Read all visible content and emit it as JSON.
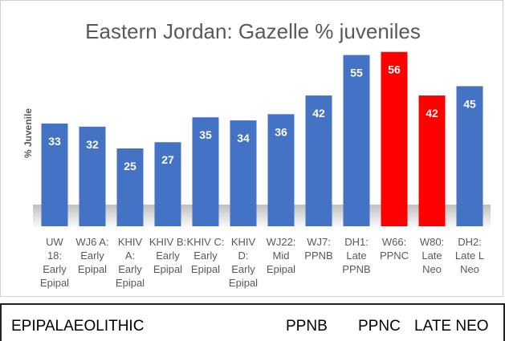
{
  "chart_data": {
    "type": "bar",
    "title": "Eastern Jordan: Gazelle % juveniles",
    "ylabel": "% Juvenile",
    "xlabel": "",
    "ylim": [
      0,
      60
    ],
    "grid": false,
    "categories": [
      [
        "UW",
        "18:",
        "Early",
        "Epipal"
      ],
      [
        "WJ6 A:",
        "Early",
        "Epipal"
      ],
      [
        "KHIV",
        "A:",
        "Early",
        "Epipal"
      ],
      [
        "KHIV B:",
        "Early",
        "Epipal"
      ],
      [
        "KHIV C:",
        "Early",
        "Epipal"
      ],
      [
        "KHIV",
        "D:",
        "Early",
        "Epipal"
      ],
      [
        "WJ22:",
        "Mid",
        "Epipal"
      ],
      [
        "WJ7:",
        "PPNB"
      ],
      [
        "DH1:",
        "Late",
        "PPNB"
      ],
      [
        "W66:",
        "PPNC"
      ],
      [
        "W80:",
        "Late",
        "Neo"
      ],
      [
        "DH2:",
        "Late L",
        "Neo"
      ]
    ],
    "values": [
      33,
      32,
      25,
      27,
      35,
      34,
      36,
      42,
      55,
      56,
      42,
      45
    ],
    "bar_colors": [
      "#4472c4",
      "#4472c4",
      "#4472c4",
      "#4472c4",
      "#4472c4",
      "#4472c4",
      "#4472c4",
      "#4472c4",
      "#4472c4",
      "#ff0000",
      "#ff0000",
      "#4472c4"
    ],
    "data_labels": [
      "33",
      "32",
      "25",
      "27",
      "35",
      "34",
      "36",
      "42",
      "55",
      "56",
      "42",
      "45"
    ]
  },
  "periods": {
    "epipalaeolithic": "EPIPALAEOLITHIC",
    "ppnb": "PPNB",
    "ppnc": "PPNC",
    "late_neo": "LATE NEO"
  },
  "colors": {
    "bar_blue": "#4472c4",
    "bar_red": "#ff0000",
    "title_gray": "#595959"
  }
}
